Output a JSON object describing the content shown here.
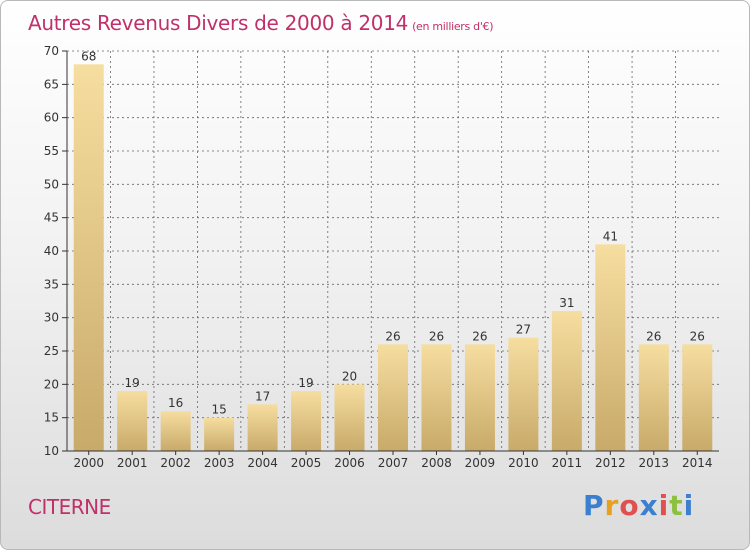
{
  "header": {
    "title": "Autres Revenus Divers de 2000 à 2014",
    "subtitle": "(en milliers d'€)"
  },
  "footer": {
    "commune": "CITERNE",
    "logo_text": "Proxiti",
    "logo_colors": [
      "#3a7fd0",
      "#e8a020",
      "#e05050",
      "#3a7fd0",
      "#e05050",
      "#8cc040",
      "#3a7fd0"
    ]
  },
  "colors": {
    "accent": "#c0306a",
    "bar_light": "#f6dea0",
    "bar_dark": "#c8aa6a",
    "grid": "#666666"
  },
  "chart_data": {
    "type": "bar",
    "categories": [
      "2000",
      "2001",
      "2002",
      "2003",
      "2004",
      "2005",
      "2006",
      "2007",
      "2008",
      "2009",
      "2010",
      "2011",
      "2012",
      "2013",
      "2014"
    ],
    "values": [
      68,
      19,
      16,
      15,
      17,
      19,
      20,
      26,
      26,
      26,
      27,
      31,
      41,
      26,
      26
    ],
    "title": "Autres Revenus Divers de 2000 à 2014",
    "subtitle": "(en milliers d'€)",
    "ylim": [
      10,
      70
    ],
    "yticks": [
      10,
      15,
      20,
      25,
      30,
      35,
      40,
      45,
      50,
      55,
      60,
      65,
      70
    ],
    "grid": true,
    "data_labels": true
  }
}
